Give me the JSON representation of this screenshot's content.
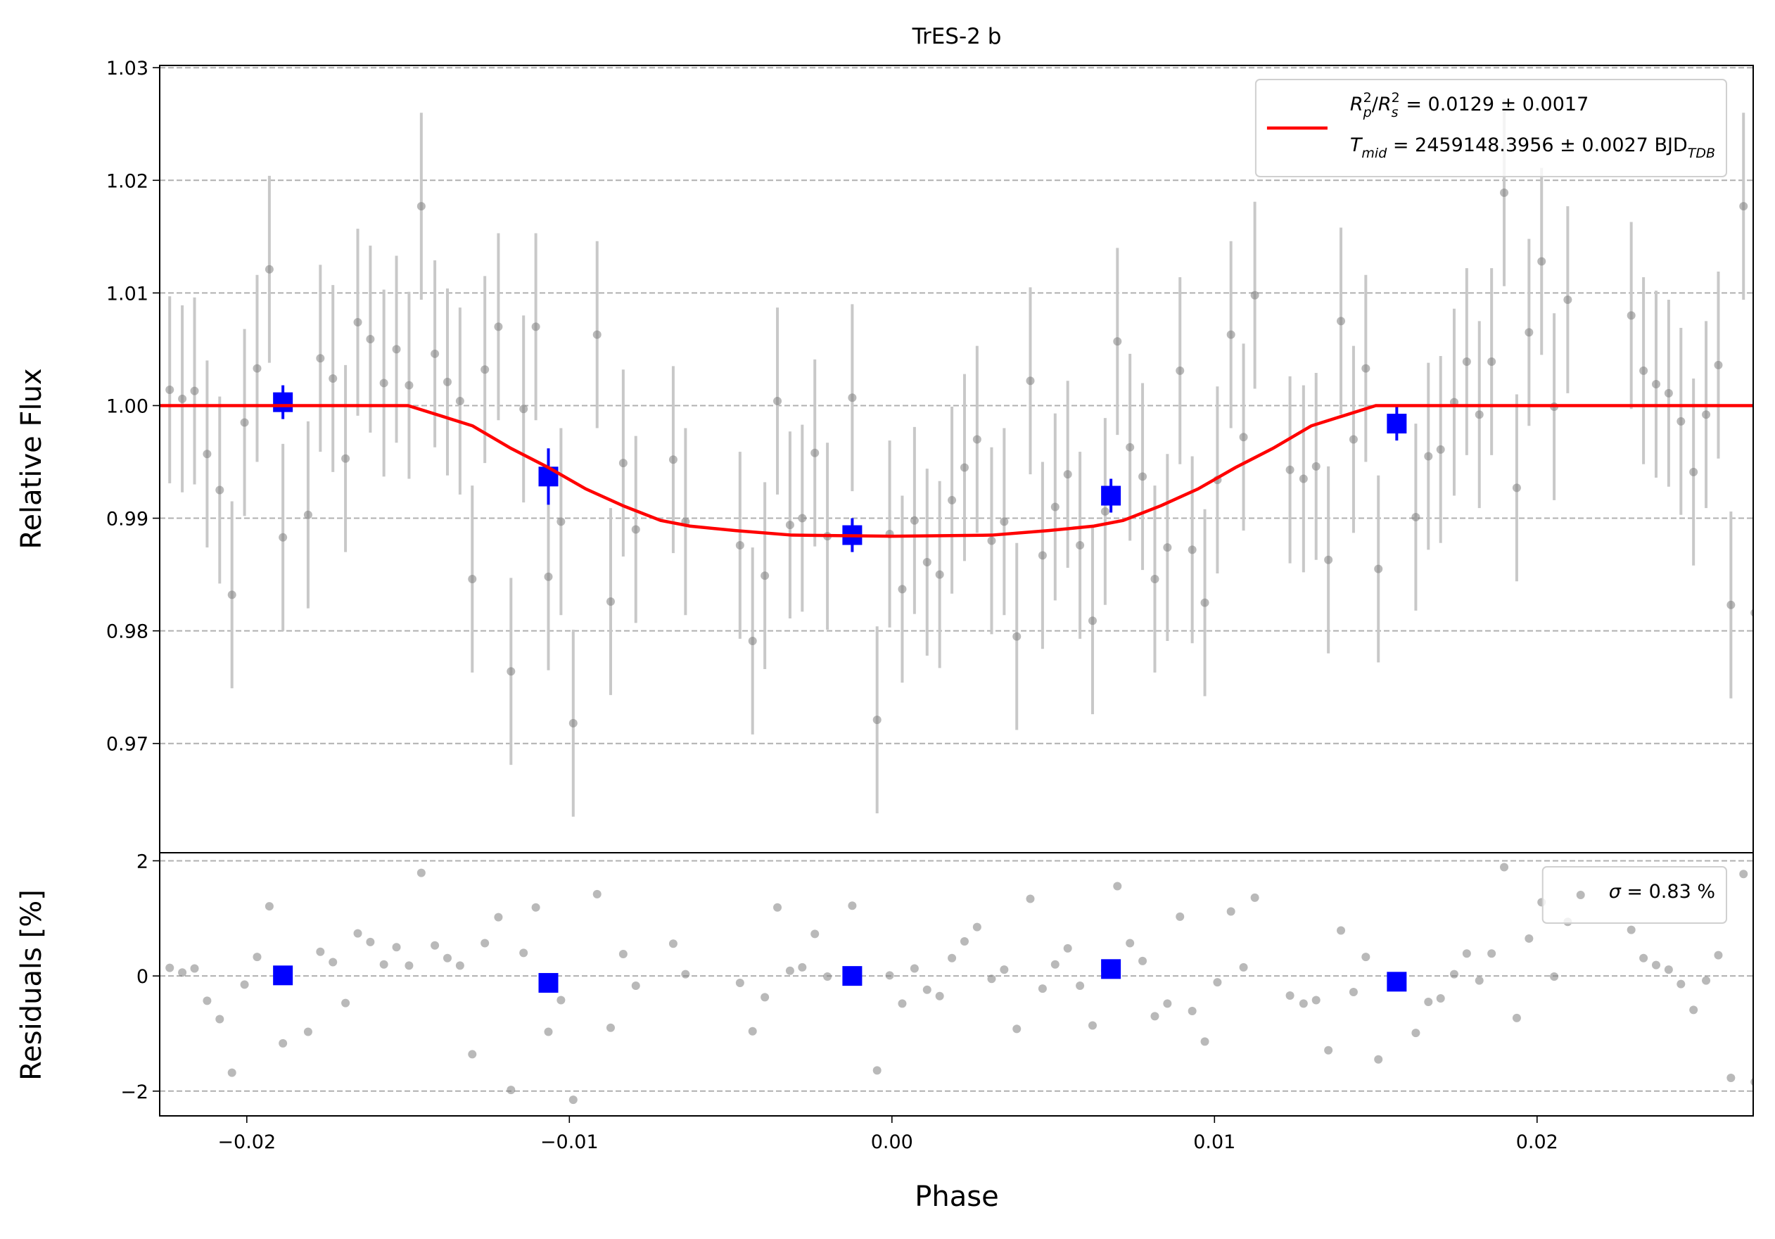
{
  "chart_data": [
    {
      "type": "scatter",
      "title": "TrES-2 b",
      "ylabel": "Relative Flux",
      "xlim": [
        -0.0227,
        0.0267
      ],
      "ylim": [
        0.9603,
        1.0302
      ],
      "yticks": [
        0.97,
        0.98,
        0.99,
        {
          "value": 1,
          "label": "1.00"
        },
        1.01,
        1.02,
        1.03
      ],
      "grid": true,
      "legend": "upper right",
      "series": [
        {
          "color": "#808080",
          "x": [
            -0.02239,
            -0.022,
            -0.02162,
            -0.02123,
            -0.02084,
            -0.02046,
            -0.02007,
            -0.01968,
            -0.0193,
            -0.01888,
            -0.0181,
            -0.01772,
            -0.01733,
            -0.01694,
            -0.01656,
            -0.01617,
            -0.01575,
            -0.01536,
            -0.01497,
            -0.01459,
            -0.01417,
            -0.01378,
            -0.01339,
            -0.01301,
            -0.01262,
            -0.0122,
            -0.01181,
            -0.01142,
            -0.01104,
            -0.01065,
            -0.01026,
            -0.00988,
            -0.00914,
            -0.00872,
            -0.00833,
            -0.00794,
            -0.00678,
            -0.0064,
            -0.00471,
            -0.00432,
            -0.00394,
            -0.00355,
            -0.00316,
            -0.00278,
            -0.00239,
            -0.002,
            -0.00123,
            -0.00046,
            -7e-05,
            0.00032,
            0.0007,
            0.00109,
            0.00148,
            0.00186,
            0.00225,
            0.00264,
            0.00309,
            0.00348,
            0.00387,
            0.00429,
            0.00467,
            0.00506,
            0.00545,
            0.00583,
            0.00622,
            0.00661,
            0.00699,
            0.00738,
            0.00777,
            0.00815,
            0.00854,
            0.00893,
            0.00931,
            0.0097,
            0.01009,
            0.01051,
            0.0109,
            0.01125,
            0.01234,
            0.01276,
            0.01315,
            0.01353,
            0.01392,
            0.01431,
            0.01469,
            0.01508,
            0.01624,
            0.01663,
            0.01701,
            0.01743,
            0.01782,
            0.01821,
            0.01859,
            0.01898,
            0.01937,
            0.01975,
            0.02014,
            0.02053,
            0.02095,
            0.02292,
            0.0233,
            0.02369,
            0.02408,
            0.02446,
            0.02485,
            0.02524,
            0.02562,
            0.02601,
            0.0264,
            0.02675
          ],
          "values": [
            1.0014,
            1.0006,
            1.0013,
            0.9957,
            0.9925,
            0.9832,
            0.9985,
            1.0033,
            1.0121,
            0.9883,
            0.9903,
            1.0042,
            1.0024,
            0.9953,
            1.0074,
            1.0059,
            1.002,
            1.005,
            1.0018,
            1.0177,
            1.0046,
            1.0021,
            1.0004,
            0.9846,
            1.0032,
            1.007,
            0.9764,
            0.9997,
            1.007,
            0.9848,
            0.9897,
            0.9718,
            1.0063,
            0.9826,
            0.9949,
            0.989,
            0.9952,
            0.9897,
            0.9876,
            0.9791,
            0.9849,
            1.0004,
            0.9894,
            0.99,
            0.9958,
            0.9884,
            1.0007,
            0.9721,
            0.9886,
            0.9837,
            0.9898,
            0.9861,
            0.985,
            0.9916,
            0.9945,
            0.997,
            0.988,
            0.9897,
            0.9795,
            1.0022,
            0.9867,
            0.991,
            0.9939,
            0.9876,
            0.9809,
            0.9906,
            1.0057,
            0.9963,
            0.9937,
            0.9846,
            0.9874,
            1.0031,
            0.9872,
            0.9825,
            0.9934,
            1.0063,
            0.9972,
            1.0098,
            0.9943,
            0.9935,
            0.9946,
            0.9863,
            1.0075,
            0.997,
            1.0033,
            0.9855,
            0.9901,
            0.9955,
            0.9961,
            1.0003,
            1.0039,
            0.9992,
            1.0039,
            1.0189,
            0.9927,
            1.0065,
            1.0128,
            0.9999,
            1.0094,
            1.008,
            1.0031,
            1.0019,
            1.0011,
            0.9986,
            0.9941,
            0.9992,
            1.0036,
            0.9823,
            1.0177,
            0.9816
          ],
          "errors": [
            0.0083,
            0.0083,
            0.0083,
            0.0083,
            0.0083,
            0.0083,
            0.0083,
            0.0083,
            0.0083,
            0.0083,
            0.0083,
            0.0083,
            0.0083,
            0.0083,
            0.0083,
            0.0083,
            0.0083,
            0.0083,
            0.0083,
            0.0083,
            0.0083,
            0.0083,
            0.0083,
            0.0083,
            0.0083,
            0.0083,
            0.0083,
            0.0083,
            0.0083,
            0.0083,
            0.0083,
            0.0083,
            0.0083,
            0.0083,
            0.0083,
            0.0083,
            0.0083,
            0.0083,
            0.0083,
            0.0083,
            0.0083,
            0.0083,
            0.0083,
            0.0083,
            0.0083,
            0.0083,
            0.0083,
            0.0083,
            0.0083,
            0.0083,
            0.0083,
            0.0083,
            0.0083,
            0.0083,
            0.0083,
            0.0083,
            0.0083,
            0.0083,
            0.0083,
            0.0083,
            0.0083,
            0.0083,
            0.0083,
            0.0083,
            0.0083,
            0.0083,
            0.0083,
            0.0083,
            0.0083,
            0.0083,
            0.0083,
            0.0083,
            0.0083,
            0.0083,
            0.0083,
            0.0083,
            0.0083,
            0.0083,
            0.0083,
            0.0083,
            0.0083,
            0.0083,
            0.0083,
            0.0083,
            0.0083,
            0.0083,
            0.0083,
            0.0083,
            0.0083,
            0.0083,
            0.0083,
            0.0083,
            0.0083,
            0.0083,
            0.0083,
            0.0083,
            0.0083,
            0.0083,
            0.0083,
            0.0083,
            0.0083,
            0.0083,
            0.0083,
            0.0083,
            0.0083,
            0.0083,
            0.0083,
            0.0083,
            0.0083,
            0.0083
          ]
        },
        {
          "color": "#0000ff",
          "x": [
            -0.01888,
            -0.01065,
            -0.00123,
            0.00679,
            0.01565
          ],
          "values": [
            1.0003,
            0.9937,
            0.9885,
            0.992,
            0.9984
          ],
          "errors": [
            0.0015,
            0.0025,
            0.0015,
            0.0015,
            0.0015
          ]
        },
        {
          "color": "#ff0000",
          "x": [
            -0.0227,
            -0.015,
            -0.013,
            -0.01181,
            -0.01065,
            -0.00949,
            -0.00833,
            -0.00717,
            -0.00626,
            -0.00485,
            -0.0031,
            0,
            0.0031,
            0.00485,
            0.00626,
            0.00717,
            0.00833,
            0.00949,
            0.01065,
            0.01181,
            0.013,
            0.015,
            0.0267
          ],
          "values": [
            1,
            1,
            0.9982,
            0.9962,
            0.9945,
            0.9926,
            0.9911,
            0.9898,
            0.9893,
            0.9889,
            0.9885,
            0.9884,
            0.9885,
            0.9889,
            0.9893,
            0.9898,
            0.9911,
            0.9926,
            0.9945,
            0.9962,
            0.9982,
            1,
            1
          ],
          "name": [
            [
              {
                "text": "R",
                "italic": true
              },
              {
                "text": "p",
                "italic": true,
                "script": "sub"
              },
              {
                "text": "2",
                "script": "sup"
              },
              {
                "text": "/"
              },
              {
                "text": "R",
                "italic": true
              },
              {
                "text": "s",
                "italic": true,
                "script": "sub"
              },
              {
                "text": "2",
                "script": "sup"
              },
              {
                "text": " = 0.0129 ± 0.0017"
              }
            ],
            [
              {
                "text": "T",
                "italic": true
              },
              {
                "text": "mid",
                "italic": true,
                "script": "sub"
              },
              {
                "text": " = 2459148.3956 ± 0.0027 BJD"
              },
              {
                "text": "TDB",
                "italic": true,
                "script": "sub"
              }
            ]
          ]
        }
      ]
    },
    {
      "type": "scatter",
      "ylabel": "Residuals [%]",
      "xlabel": "Phase",
      "xlim": [
        -0.0227,
        0.0267
      ],
      "ylim": [
        -2.43,
        2.14
      ],
      "xticks": [
        {
          "value": -0.02,
          "label": "−0.02"
        },
        {
          "value": -0.01,
          "label": "−0.01"
        },
        {
          "value": 0,
          "label": "0.00"
        },
        0.01,
        0.02
      ],
      "yticks": [
        {
          "value": -2,
          "label": "−2"
        },
        0,
        2
      ],
      "grid": true,
      "legend": "upper right",
      "series": [
        {
          "color": "#808080",
          "values": [
            0.14,
            0.06,
            0.13,
            -0.43,
            -0.75,
            -1.68,
            -0.15,
            0.33,
            1.21,
            -1.17,
            -0.97,
            0.42,
            0.24,
            -0.47,
            0.74,
            0.59,
            0.2,
            0.5,
            0.18,
            1.79,
            0.53,
            0.31,
            0.18,
            -1.36,
            0.57,
            1.02,
            -1.98,
            0.4,
            1.19,
            -0.97,
            -0.42,
            -2.15,
            1.42,
            -0.9,
            0.38,
            -0.17,
            0.56,
            0.03,
            -0.12,
            -0.96,
            -0.37,
            1.19,
            0.09,
            0.15,
            0.73,
            -0.01,
            1.22,
            -1.64,
            0.01,
            -0.48,
            0.13,
            -0.24,
            -0.35,
            0.31,
            0.6,
            0.85,
            -0.05,
            0.11,
            -0.92,
            1.34,
            -0.22,
            0.2,
            0.48,
            -0.17,
            -0.86,
            0.09,
            1.56,
            0.57,
            0.26,
            -0.7,
            -0.48,
            1.03,
            -0.61,
            -1.14,
            -0.11,
            1.12,
            0.15,
            1.36,
            -0.34,
            -0.48,
            -0.42,
            -1.29,
            0.79,
            -0.28,
            0.33,
            -1.45,
            -0.99,
            -0.45,
            -0.39,
            0.03,
            0.39,
            -0.08,
            0.39,
            1.89,
            -0.73,
            0.65,
            1.28,
            -0.01,
            0.94,
            0.8,
            0.31,
            0.19,
            0.11,
            -0.14,
            -0.59,
            -0.08,
            0.36,
            -1.77,
            1.77,
            -1.84
          ],
          "name": [
            [
              {
                "text": "σ",
                "italic": true
              },
              {
                "text": " = 0.83 %"
              }
            ]
          ]
        },
        {
          "color": "#0000ff",
          "values": [
            0.01,
            -0.12,
            0,
            0.12,
            -0.1
          ]
        }
      ]
    }
  ]
}
